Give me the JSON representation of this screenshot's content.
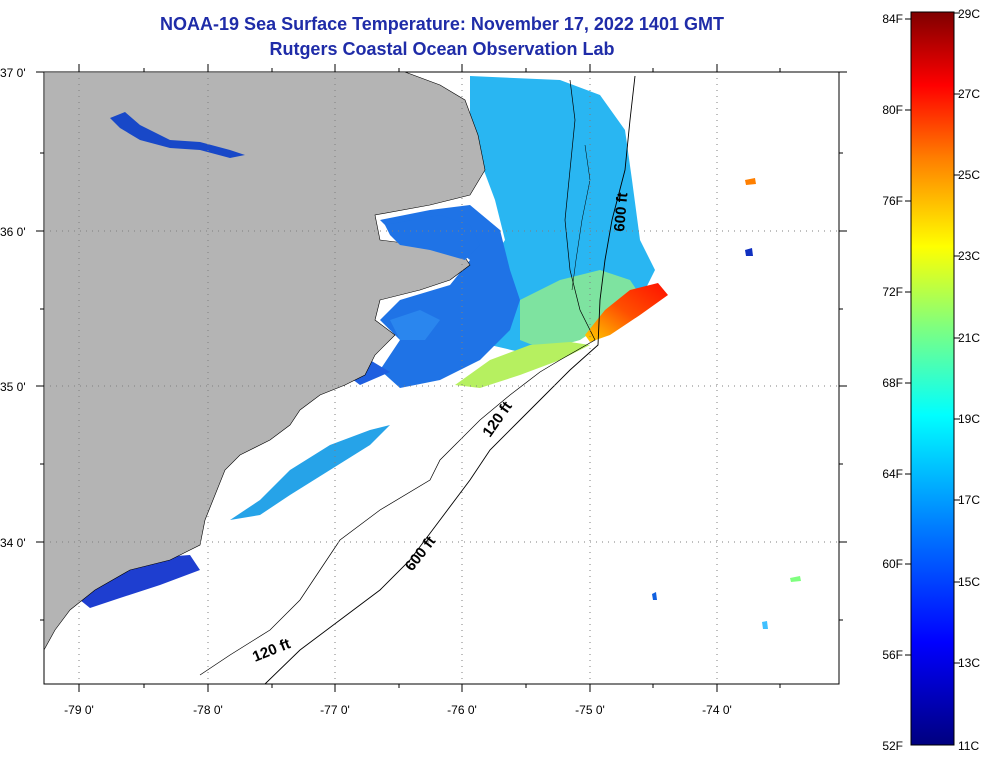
{
  "title": "NOAA-19 Sea Surface Temperature:  November 17, 2022 1401 GMT",
  "subtitle": "Rutgers Coastal Ocean Observation Lab",
  "map": {
    "lat_labels": [
      "37 0'",
      "36 0'",
      "35 0'",
      "34 0'"
    ],
    "lon_labels": [
      "-79 0'",
      "-78 0'",
      "-77 0'",
      "-76 0'",
      "-75 0'",
      "-74 0'"
    ],
    "contour_labels": [
      "600 ft",
      "120 ft",
      "600 ft",
      "120 ft"
    ],
    "colors": {
      "land": "#b4b4b4",
      "ocean_nodata": "#ffffff",
      "grid": "#7f7f7f"
    }
  },
  "colorbar": {
    "fahrenheit_labels": [
      "84F",
      "80F",
      "76F",
      "72F",
      "68F",
      "64F",
      "60F",
      "56F",
      "52F"
    ],
    "celsius_labels": [
      "29C",
      "27C",
      "25C",
      "23C",
      "21C",
      "19C",
      "17C",
      "15C",
      "13C",
      "11C"
    ],
    "colors": [
      "#00007f",
      "#0000ff",
      "#007fff",
      "#00ffff",
      "#7fff7f",
      "#ffff00",
      "#ff7f00",
      "#ff0000",
      "#7f0000"
    ]
  }
}
